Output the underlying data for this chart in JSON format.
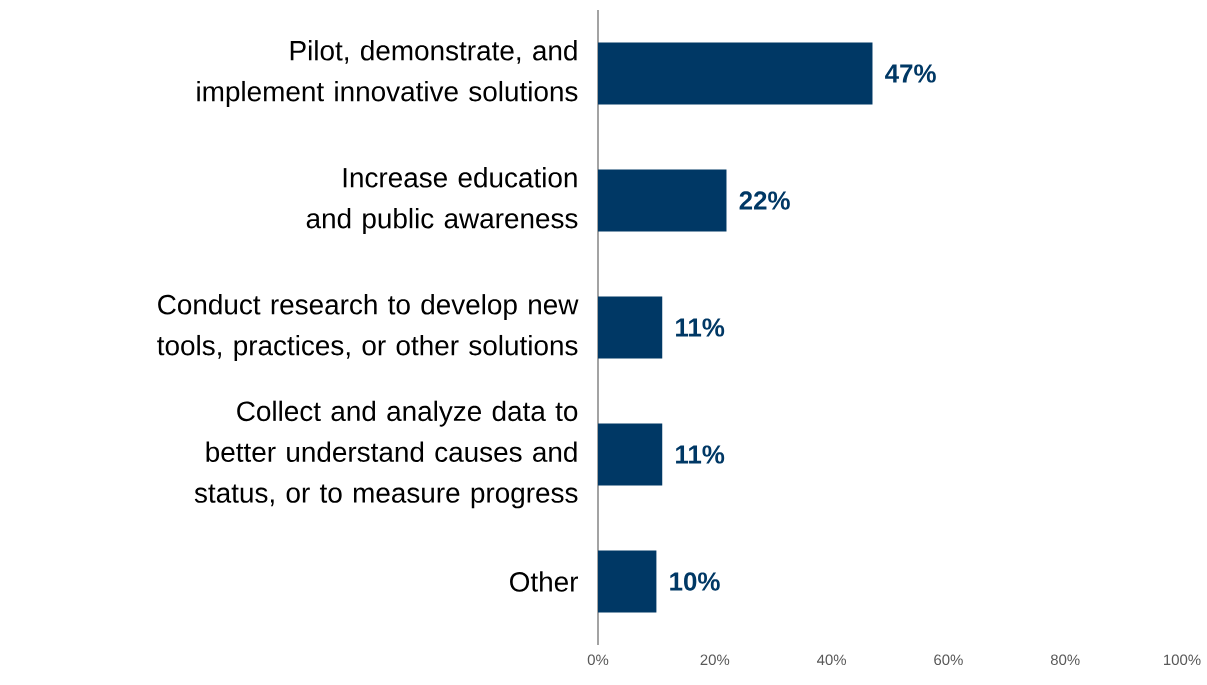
{
  "chart_data": {
    "type": "bar",
    "orientation": "horizontal",
    "categories": [
      "Pilot, demonstrate, and implement innovative solutions",
      "Increase education and public awareness",
      "Conduct research to develop new tools, practices, or other solutions",
      "Collect and analyze data to better understand causes and status, or to measure progress",
      "Other"
    ],
    "values": [
      47,
      22,
      11,
      11,
      10
    ],
    "value_labels": [
      "47%",
      "22%",
      "11%",
      "11%",
      "10%"
    ],
    "color": "#003865",
    "xlim": [
      0,
      100
    ],
    "xticks": [
      {
        "value": 0,
        "label": "0%"
      },
      {
        "value": 20,
        "label": "20%"
      },
      {
        "value": 40,
        "label": "40%"
      },
      {
        "value": 60,
        "label": "60%"
      },
      {
        "value": 80,
        "label": "80%"
      },
      {
        "value": 100,
        "label": "100%"
      }
    ],
    "grid": false
  }
}
